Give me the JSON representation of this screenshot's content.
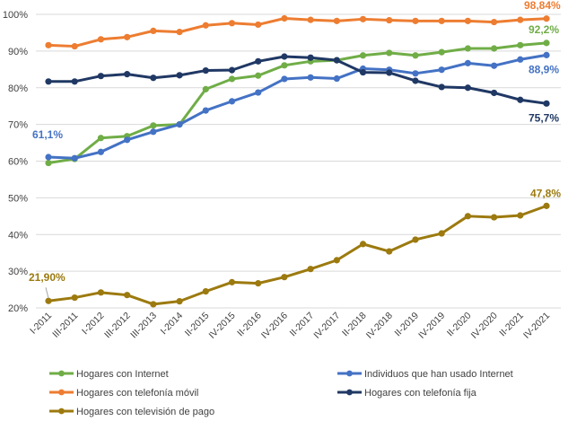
{
  "chart_data": {
    "type": "line",
    "title": "",
    "xlabel": "",
    "ylabel": "",
    "ylim": [
      20,
      100
    ],
    "yticks": [
      "20%",
      "30%",
      "40%",
      "50%",
      "60%",
      "70%",
      "80%",
      "90%",
      "100%"
    ],
    "grid": true,
    "legend_position": "bottom",
    "categories": [
      "I-2011",
      "III-2011",
      "I-2012",
      "III-2012",
      "III-2013",
      "I-2014",
      "II-2015",
      "IV-2015",
      "II-2016",
      "IV-2016",
      "II-2017",
      "IV-2017",
      "II-2018",
      "IV-2018",
      "II-2019",
      "IV-2019",
      "II-2020",
      "IV-2020",
      "II-2021",
      "IV-2021"
    ],
    "series": [
      {
        "name": "Hogares con Internet",
        "color": "#70ad47",
        "values": [
          59.5,
          60.6,
          66.3,
          66.8,
          69.7,
          70.0,
          79.6,
          82.4,
          83.3,
          86.1,
          87.2,
          87.5,
          88.8,
          89.5,
          88.8,
          89.7,
          90.7,
          90.7,
          91.6,
          92.2
        ],
        "labels": [
          {
            "index": 19,
            "text": "92,2%"
          }
        ]
      },
      {
        "name": "Individuos que han usado Internet",
        "color": "#4472c4",
        "values": [
          61.1,
          60.8,
          62.5,
          65.8,
          68.0,
          70.0,
          73.8,
          76.3,
          78.7,
          82.4,
          82.8,
          82.5,
          85.2,
          84.9,
          83.9,
          84.9,
          86.7,
          86.0,
          87.7,
          88.9
        ],
        "labels": [
          {
            "index": 0,
            "text": "61,1%"
          },
          {
            "index": 19,
            "text": "88,9%"
          }
        ]
      },
      {
        "name": "Hogares con telefonía móvil",
        "color": "#ed7d31",
        "values": [
          91.6,
          91.3,
          93.2,
          93.8,
          95.5,
          95.2,
          97.0,
          97.6,
          97.2,
          98.9,
          98.5,
          98.2,
          98.7,
          98.4,
          98.2,
          98.2,
          98.2,
          97.9,
          98.5,
          98.84
        ],
        "labels": [
          {
            "index": 19,
            "text": "98,84%"
          }
        ]
      },
      {
        "name": "Hogares con telefonía fija",
        "color": "#203864",
        "values": [
          81.7,
          81.7,
          83.2,
          83.7,
          82.7,
          83.4,
          84.7,
          84.8,
          87.2,
          88.5,
          88.2,
          87.5,
          84.2,
          84.1,
          81.9,
          80.2,
          80.0,
          78.6,
          76.7,
          75.7
        ],
        "labels": [
          {
            "index": 19,
            "text": "75,7%"
          }
        ]
      },
      {
        "name": "Hogares con televisión de pago",
        "color": "#9c7a0f",
        "values": [
          21.9,
          22.8,
          24.2,
          23.5,
          21.0,
          21.8,
          24.5,
          27.0,
          26.7,
          28.4,
          30.6,
          33.0,
          37.4,
          35.4,
          38.6,
          40.3,
          45.0,
          44.7,
          45.2,
          47.8
        ],
        "labels": [
          {
            "index": 0,
            "text": "21,90%"
          },
          {
            "index": 19,
            "text": "47,8%"
          }
        ]
      }
    ],
    "legend": [
      {
        "series": 0,
        "column": 0,
        "row": 0
      },
      {
        "series": 1,
        "column": 1,
        "row": 0
      },
      {
        "series": 2,
        "column": 0,
        "row": 1
      },
      {
        "series": 3,
        "column": 1,
        "row": 1
      },
      {
        "series": 4,
        "column": 0,
        "row": 2
      }
    ]
  }
}
